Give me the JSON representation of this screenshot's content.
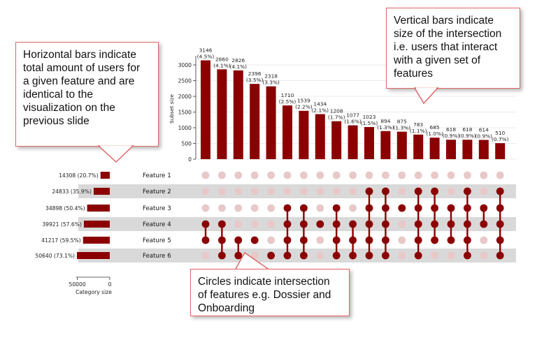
{
  "colors": {
    "accent": "#8b0000",
    "inactive_dot": "#e8c8c8",
    "row_shade": "#d9d9d9",
    "callout_border": "#e06666",
    "text": "#111111"
  },
  "callouts": {
    "left": [
      "Horizontal bars indicate",
      "total amount of users for",
      "a given feature and are",
      "identical to the",
      "visualization on the",
      "previous slide"
    ],
    "right": [
      "Vertical bars indicate",
      "size of the intersection",
      "i.e. users that interact",
      "with a given set of",
      "features"
    ],
    "bottom": [
      "Circles indicate intersection",
      "of features e.g. Dossier and",
      "Onboarding"
    ]
  },
  "chart_data": {
    "type": "upset",
    "intersection_axis": {
      "label": "Subset size",
      "ylim": [
        0,
        3200
      ],
      "ticks": [
        0,
        500,
        1000,
        1500,
        2000,
        2500,
        3000
      ]
    },
    "category_axis": {
      "label": "Category size",
      "xlim": [
        0,
        50640
      ],
      "ticks": [
        50000,
        0
      ]
    },
    "sets": [
      {
        "name": "Feature 1",
        "size": 14308,
        "label": "14308 (20.7%)"
      },
      {
        "name": "Feature 2",
        "size": 24833,
        "label": "24833 (35.9%)"
      },
      {
        "name": "Feature 3",
        "size": 34898,
        "label": "34898 (50.4%)"
      },
      {
        "name": "Feature 4",
        "size": 39921,
        "label": "39921 (57.6%)"
      },
      {
        "name": "Feature 5",
        "size": 41217,
        "label": "41217 (59.5%)"
      },
      {
        "name": "Feature 6",
        "size": 50640,
        "label": "50640 (73.1%)"
      }
    ],
    "intersections": [
      {
        "value": 3146,
        "pct": "(4.5%)",
        "members": [
          3,
          4
        ]
      },
      {
        "value": 2860,
        "pct": "(4.1%)",
        "members": [
          3,
          4,
          5
        ]
      },
      {
        "value": 2826,
        "pct": "(4.1%)",
        "members": [
          4,
          5
        ]
      },
      {
        "value": 2396,
        "pct": "(3.5%)",
        "members": [
          4
        ]
      },
      {
        "value": 2318,
        "pct": "(3.3%)",
        "members": [
          5
        ]
      },
      {
        "value": 1710,
        "pct": "(2.5%)",
        "members": [
          2,
          3,
          4,
          5
        ]
      },
      {
        "value": 1539,
        "pct": "(2.2%)",
        "members": [
          2,
          3,
          4,
          5
        ]
      },
      {
        "value": 1434,
        "pct": "(2.1%)",
        "members": [
          3
        ]
      },
      {
        "value": 1208,
        "pct": "(1.7%)",
        "members": [
          2,
          3,
          4,
          5
        ]
      },
      {
        "value": 1077,
        "pct": "(1.6%)",
        "members": [
          3,
          4,
          5
        ]
      },
      {
        "value": 1023,
        "pct": "(1.5%)",
        "members": [
          1,
          2,
          3,
          4,
          5
        ]
      },
      {
        "value": 894,
        "pct": "(1.3%)",
        "members": [
          1,
          2,
          3,
          4,
          5
        ]
      },
      {
        "value": 875,
        "pct": "(1.3%)",
        "members": [
          2
        ]
      },
      {
        "value": 783,
        "pct": "(1.1%)",
        "members": [
          1,
          2,
          3,
          4,
          5
        ]
      },
      {
        "value": 685,
        "pct": "(1.0%)",
        "members": [
          1,
          2,
          3,
          4
        ]
      },
      {
        "value": 618,
        "pct": "(0.9%)",
        "members": [
          2,
          3,
          4
        ]
      },
      {
        "value": 618,
        "pct": "(0.9%)",
        "members": [
          1,
          2,
          3,
          4,
          5
        ]
      },
      {
        "value": 614,
        "pct": "(0.9%)",
        "members": [
          2,
          3
        ]
      },
      {
        "value": 510,
        "pct": "(0.7%)",
        "members": [
          1,
          2,
          3,
          4,
          5
        ]
      }
    ]
  }
}
